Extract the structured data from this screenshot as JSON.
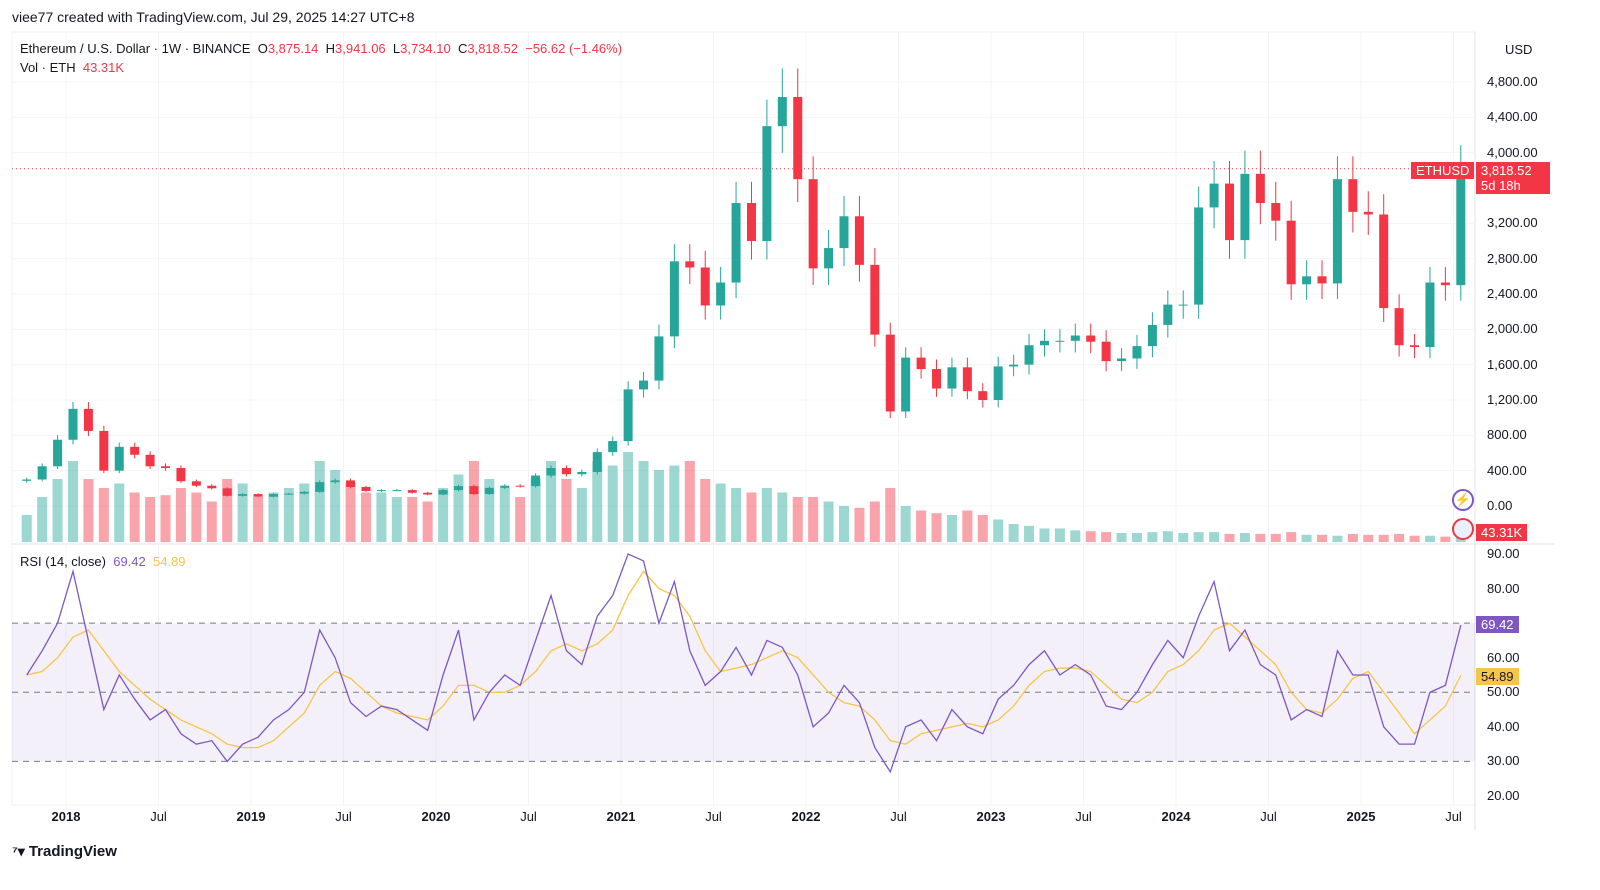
{
  "credit": "viee77 created with TradingView.com, Jul 29, 2025 14:27 UTC+8",
  "legend": {
    "symbol": "Ethereum / U.S. Dollar · 1W · BINANCE",
    "o_label": "O",
    "o": "3,875.14",
    "h_label": "H",
    "h": "3,941.06",
    "l_label": "L",
    "l": "3,734.10",
    "c_label": "C",
    "c": "3,818.52",
    "change": "−56.62 (−1.46%)",
    "vol_label": "Vol · ETH",
    "vol": "43.31K",
    "rsi_label": "RSI (14, close)",
    "rsi": "69.42",
    "rsi_ma": "54.89"
  },
  "price_axis": {
    "currency": "USD",
    "ticks": [
      "4,800.00",
      "4,400.00",
      "4,000.00",
      "3,200.00",
      "2,800.00",
      "2,400.00",
      "2,000.00",
      "1,600.00",
      "1,200.00",
      "800.00",
      "400.00",
      "0.00"
    ],
    "last_tag_symbol": "ETHUSD",
    "last_price": "3,818.52",
    "countdown": "5d 18h",
    "vol_tag": "43.31K"
  },
  "rsi_axis": {
    "ticks": [
      "90.00",
      "80.00",
      "60.00",
      "50.00",
      "40.00",
      "30.00",
      "20.00"
    ],
    "rsi_tag": "69.42",
    "ma_tag": "54.89"
  },
  "time_axis": [
    {
      "label": "2018",
      "year": true
    },
    {
      "label": "Jul",
      "year": false
    },
    {
      "label": "2019",
      "year": true
    },
    {
      "label": "Jul",
      "year": false
    },
    {
      "label": "2020",
      "year": true
    },
    {
      "label": "Jul",
      "year": false
    },
    {
      "label": "2021",
      "year": true
    },
    {
      "label": "Jul",
      "year": false
    },
    {
      "label": "2022",
      "year": true
    },
    {
      "label": "Jul",
      "year": false
    },
    {
      "label": "2023",
      "year": true
    },
    {
      "label": "Jul",
      "year": false
    },
    {
      "label": "2024",
      "year": true
    },
    {
      "label": "Jul",
      "year": false
    },
    {
      "label": "2025",
      "year": true
    },
    {
      "label": "Jul",
      "year": false
    }
  ],
  "footer": {
    "logo_text": "TradingView"
  },
  "colors": {
    "up": "#26a69a",
    "down": "#f23645",
    "rsi": "#7e57c2",
    "rsi_ma": "#f7c548",
    "band": "#7e57c2"
  },
  "chart_data": [
    {
      "type": "candlestick",
      "title": "Ethereum / U.S. Dollar · 1W · BINANCE",
      "start": "2017-10",
      "x_interval": "month (approximated from weekly candles)",
      "ylim": [
        0,
        4800
      ],
      "close": [
        300,
        450,
        750,
        1100,
        850,
        400,
        670,
        580,
        450,
        430,
        280,
        230,
        200,
        115,
        135,
        105,
        135,
        140,
        160,
        270,
        290,
        215,
        170,
        180,
        180,
        150,
        130,
        180,
        225,
        135,
        205,
        230,
        225,
        345,
        430,
        360,
        385,
        610,
        735,
        1320,
        1420,
        1920,
        2770,
        2700,
        2270,
        2530,
        3430,
        3000,
        4300,
        4630,
        3700,
        2690,
        2920,
        3280,
        2730,
        1940,
        1070,
        1680,
        1550,
        1330,
        1570,
        1300,
        1200,
        1580,
        1600,
        1820,
        1870,
        1870,
        1930,
        1860,
        1640,
        1670,
        1810,
        2050,
        2280,
        2280,
        3380,
        3650,
        3010,
        3760,
        3430,
        3230,
        2510,
        2600,
        2520,
        3700,
        3330,
        3300,
        2240,
        1820,
        1800,
        2530,
        2500,
        3818.52
      ]
    },
    {
      "type": "bar",
      "title": "Vol · ETH",
      "values_k": [
        300,
        500,
        700,
        900,
        700,
        600,
        650,
        550,
        500,
        520,
        600,
        550,
        450,
        700,
        650,
        500,
        550,
        600,
        650,
        900,
        800,
        650,
        550,
        550,
        500,
        500,
        450,
        600,
        750,
        900,
        700,
        600,
        500,
        700,
        900,
        700,
        600,
        900,
        850,
        1000,
        900,
        800,
        850,
        900,
        700,
        650,
        600,
        550,
        600,
        550,
        500,
        500,
        450,
        400,
        380,
        450,
        600,
        400,
        350,
        320,
        300,
        350,
        300,
        250,
        200,
        180,
        150,
        150,
        130,
        120,
        110,
        100,
        100,
        110,
        120,
        100,
        110,
        110,
        90,
        100,
        90,
        90,
        110,
        80,
        80,
        70,
        90,
        80,
        80,
        90,
        70,
        70,
        60,
        43.31
      ]
    },
    {
      "type": "line",
      "title": "RSI (14, close)",
      "ylim": [
        20,
        90
      ],
      "bands": [
        30,
        50,
        70
      ],
      "series": [
        {
          "name": "RSI",
          "values": [
            55,
            62,
            70,
            85,
            65,
            45,
            55,
            48,
            42,
            45,
            38,
            35,
            36,
            30,
            35,
            37,
            42,
            45,
            50,
            68,
            60,
            47,
            43,
            46,
            45,
            42,
            39,
            55,
            68,
            42,
            50,
            55,
            52,
            65,
            78,
            62,
            58,
            72,
            78,
            90,
            88,
            70,
            82,
            62,
            52,
            56,
            63,
            55,
            65,
            63,
            55,
            40,
            44,
            52,
            47,
            34,
            27,
            40,
            42,
            36,
            45,
            40,
            38,
            48,
            52,
            58,
            62,
            55,
            58,
            55,
            46,
            45,
            50,
            58,
            65,
            60,
            72,
            82,
            62,
            68,
            58,
            55,
            42,
            45,
            43,
            62,
            55,
            55,
            40,
            35,
            35,
            50,
            52,
            69.42
          ]
        },
        {
          "name": "RSI MA",
          "values": [
            55,
            56,
            60,
            66,
            68,
            62,
            56,
            52,
            48,
            45,
            42,
            40,
            38,
            35,
            34,
            34,
            36,
            40,
            44,
            52,
            56,
            54,
            50,
            46,
            44,
            43,
            42,
            46,
            52,
            52,
            50,
            50,
            52,
            56,
            62,
            64,
            62,
            64,
            68,
            78,
            85,
            80,
            78,
            72,
            62,
            56,
            57,
            58,
            60,
            62,
            60,
            55,
            50,
            47,
            46,
            42,
            36,
            35,
            38,
            39,
            40,
            41,
            40,
            42,
            46,
            52,
            56,
            57,
            57,
            56,
            52,
            48,
            47,
            50,
            56,
            58,
            62,
            68,
            70,
            66,
            62,
            58,
            50,
            45,
            44,
            48,
            54,
            56,
            50,
            44,
            38,
            42,
            46,
            54.89
          ]
        }
      ]
    }
  ]
}
